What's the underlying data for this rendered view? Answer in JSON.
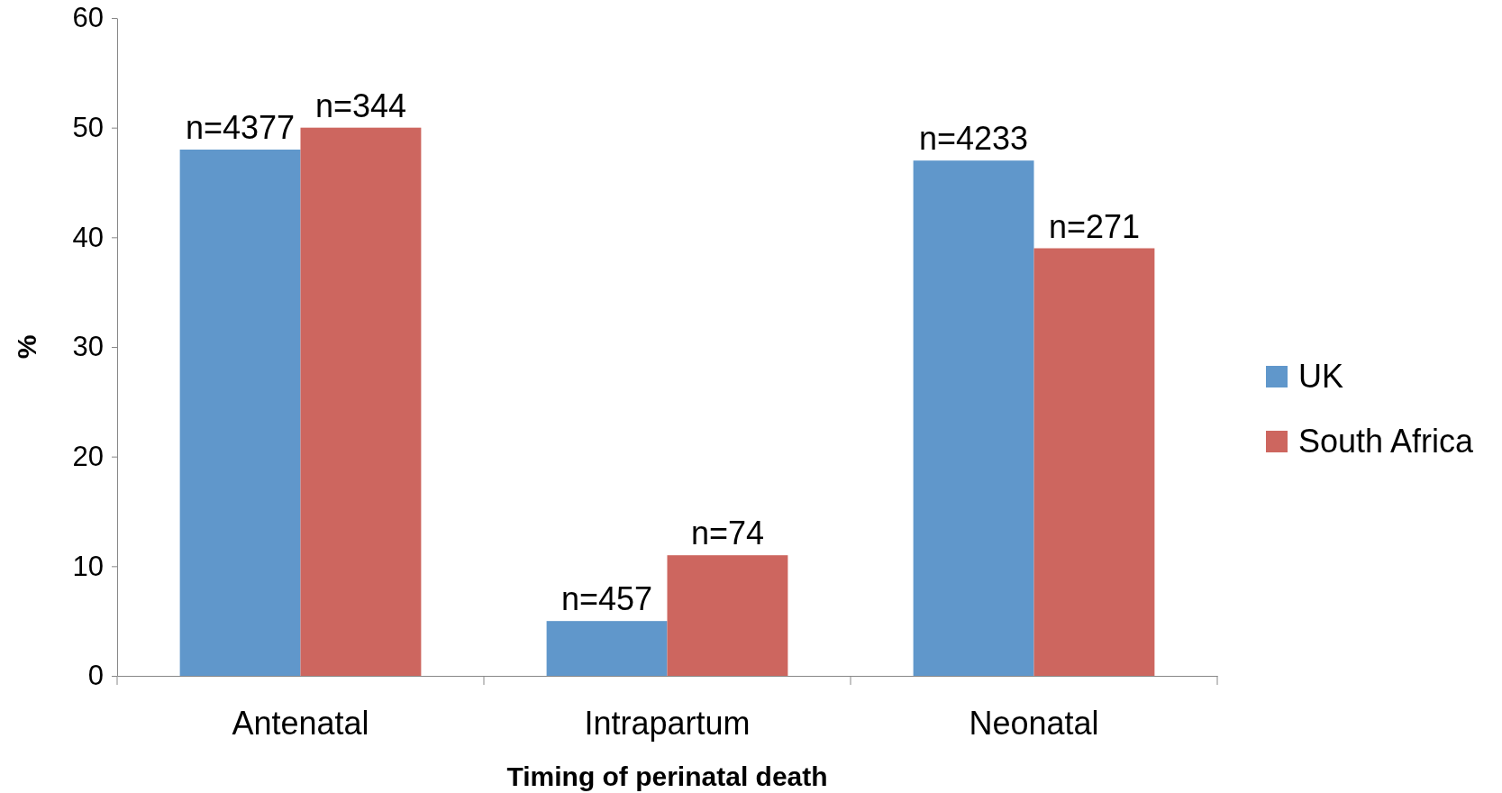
{
  "chart_data": {
    "type": "bar",
    "xlabel": "Timing of perinatal death",
    "ylabel": "%",
    "categories": [
      "Antenatal",
      "Intrapartum",
      "Neonatal"
    ],
    "series": [
      {
        "name": "UK",
        "color": "#6097cb",
        "values": [
          48,
          5,
          47
        ]
      },
      {
        "name": "South Africa",
        "color": "#cd665f",
        "values": [
          50,
          11,
          39
        ]
      }
    ],
    "annotations": [
      {
        "text": "n=4377",
        "x": "Antenatal",
        "y": 48
      },
      {
        "text": "n=457",
        "x": "Intrapartum",
        "y": 5
      },
      {
        "text": "n=4233",
        "x": "Neonatal",
        "y": 47
      },
      {
        "text": "n=344",
        "x": "Antenatal",
        "y": 50
      },
      {
        "text": "n=74",
        "x": "Intrapartum",
        "y": 11
      },
      {
        "text": "n=271",
        "x": "Neonatal",
        "y": 39
      }
    ],
    "ylim": [
      0,
      60
    ],
    "yticks": [
      0,
      10,
      20,
      30,
      40,
      50,
      60
    ],
    "grid": false,
    "legend": "right"
  }
}
